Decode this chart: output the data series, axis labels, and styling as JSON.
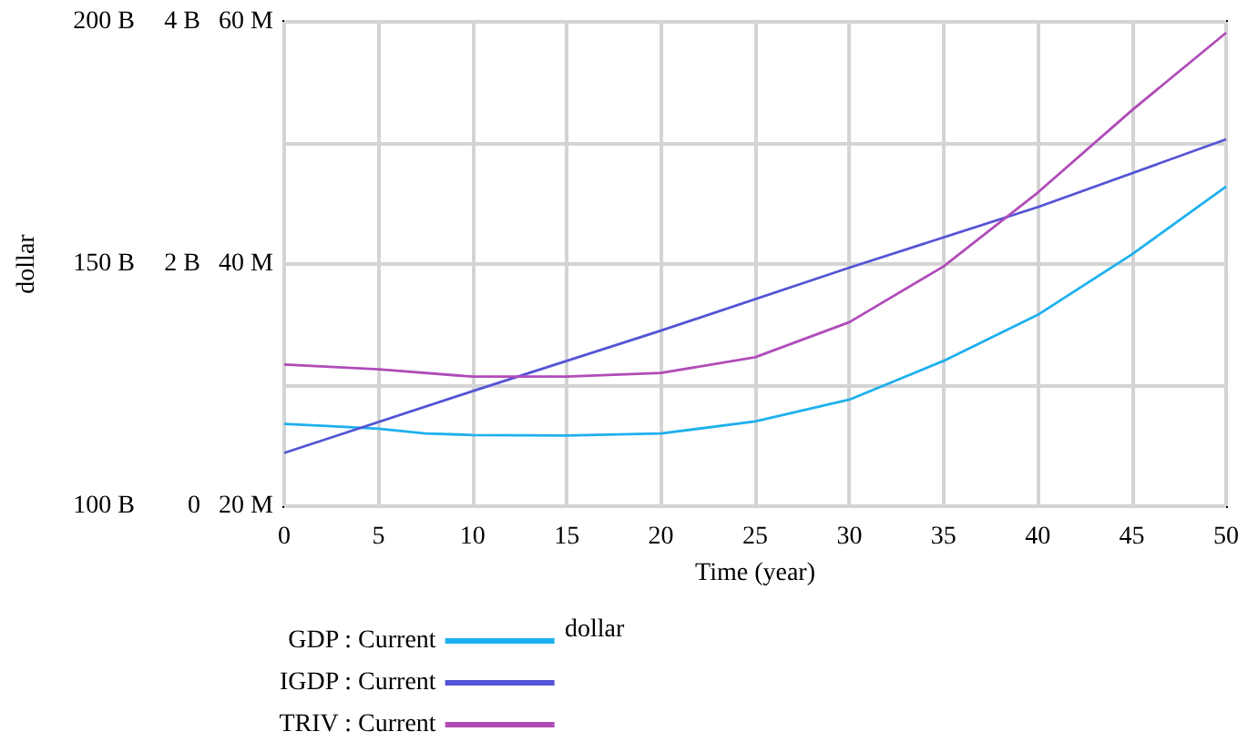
{
  "chart_data": {
    "type": "line",
    "xlabel": "Time (year)",
    "ylabel": "dollar",
    "xlim": [
      0,
      50
    ],
    "xticks": [
      0,
      5,
      10,
      15,
      20,
      25,
      30,
      35,
      40,
      45,
      50
    ],
    "ylim": [
      100000000000,
      200000000000
    ],
    "yticks": [
      {
        "value": 100000000000,
        "label": "100 B"
      },
      {
        "value": 125000000000,
        "label": null
      },
      {
        "value": 150000000000,
        "label": "150 B"
      },
      {
        "value": 175000000000,
        "label": null
      },
      {
        "value": 200000000000,
        "label": "200 B"
      }
    ],
    "y2lim": [
      0,
      4000000000
    ],
    "y2ticks": [
      0,
      {
        "value": 2000000000,
        "label": "2 B"
      },
      {
        "value": 4000000000,
        "label": "4 B"
      }
    ],
    "y3lim": [
      20000000,
      60000000
    ],
    "y3ticks": [
      {
        "value": 20000000,
        "label": "20 M"
      },
      {
        "value": 40000000,
        "label": "40 M"
      },
      {
        "value": 60000000,
        "label": "60 M"
      }
    ],
    "series": [
      {
        "name": "GDP : Current",
        "color": "#1eb0ee",
        "x": [
          0,
          2.5,
          5,
          7.5,
          10,
          15,
          20,
          25,
          30,
          35,
          40,
          45,
          50
        ],
        "values": [
          117000000000,
          116500000000,
          116000000000,
          115000000000,
          114700000000,
          114600000000,
          115000000000,
          117500000000,
          122000000000,
          130000000000,
          139500000000,
          152000000000,
          166000000000
        ]
      },
      {
        "name": "IGDP : Current",
        "color": "#5454d6",
        "axis": "y2",
        "x": [
          0,
          10,
          20,
          30,
          40,
          50
        ],
        "values": [
          440000000,
          950000000,
          1450000000,
          1970000000,
          2470000000,
          3030000000
        ]
      },
      {
        "name": "TRIV : Current",
        "color": "#b04cb8",
        "axis": "y3",
        "x": [
          0,
          5,
          10,
          15,
          20,
          25,
          30,
          35,
          40,
          45,
          50
        ],
        "values": [
          31700000,
          31300000,
          30700000,
          30700000,
          31000000,
          32300000,
          35200000,
          39800000,
          45900000,
          52700000,
          59100000
        ]
      }
    ],
    "annotations": [
      "dollar"
    ],
    "grid": true,
    "legend": "bottom",
    "marker": "none",
    "line_style": "solid"
  }
}
